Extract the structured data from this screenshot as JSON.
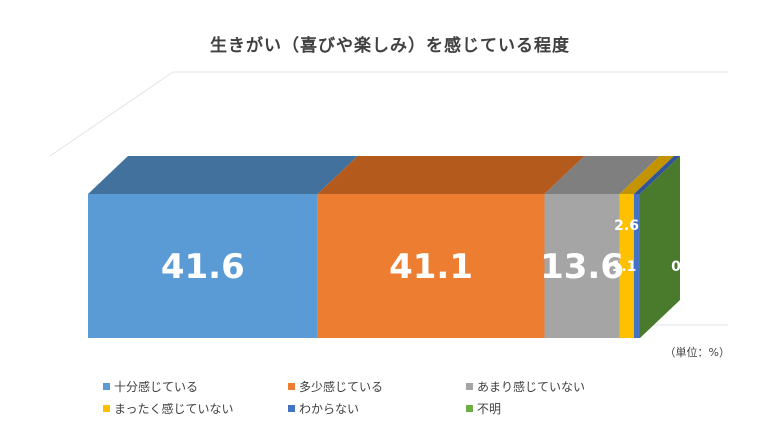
{
  "chart_data": {
    "type": "bar",
    "orientation": "horizontal-stacked-3d",
    "title": "生きがい（喜びや楽しみ）を感じている程度",
    "unit_note": "（単位：%）",
    "categories": [
      "十分感じている",
      "多少感じている",
      "あまり感じていない",
      "まったく感じていない",
      "わからない",
      "不明"
    ],
    "values": [
      41.6,
      41.1,
      13.6,
      2.6,
      1.1,
      0
    ],
    "value_labels": [
      "41.6",
      "41.1",
      "13.6",
      "2.6",
      "1.1",
      "0"
    ],
    "colors": {
      "front": [
        "#5b9bd5",
        "#ed7d31",
        "#a5a5a5",
        "#ffc000",
        "#4472c4",
        "#70ad47"
      ],
      "top": [
        "#41719c",
        "#b55a1d",
        "#7f7f7f",
        "#c49400",
        "#2f5597",
        "#507e32"
      ],
      "side": "#4a7a2c"
    },
    "legend_position": "bottom",
    "xlim": [
      0,
      100
    ]
  }
}
